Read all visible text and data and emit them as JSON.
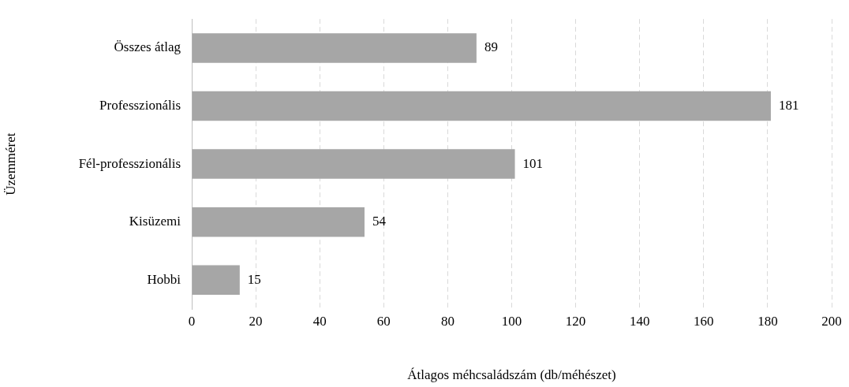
{
  "chart_data": {
    "type": "bar",
    "orientation": "horizontal",
    "xlabel": "Átlagos méhcsaládszám (db/méhészet)",
    "ylabel": "Üzemméret",
    "categories": [
      "Összes átlag",
      "Professzionális",
      "Fél-professzionális",
      "Kisüzemi",
      "Hobbi"
    ],
    "values": [
      89,
      181,
      101,
      54,
      15
    ],
    "color": "#a6a6a6",
    "xlim": [
      0,
      200
    ],
    "xticks": [
      0,
      20,
      40,
      60,
      80,
      100,
      120,
      140,
      160,
      180,
      200
    ],
    "grid": "x",
    "data_labels": true,
    "legend": false
  }
}
